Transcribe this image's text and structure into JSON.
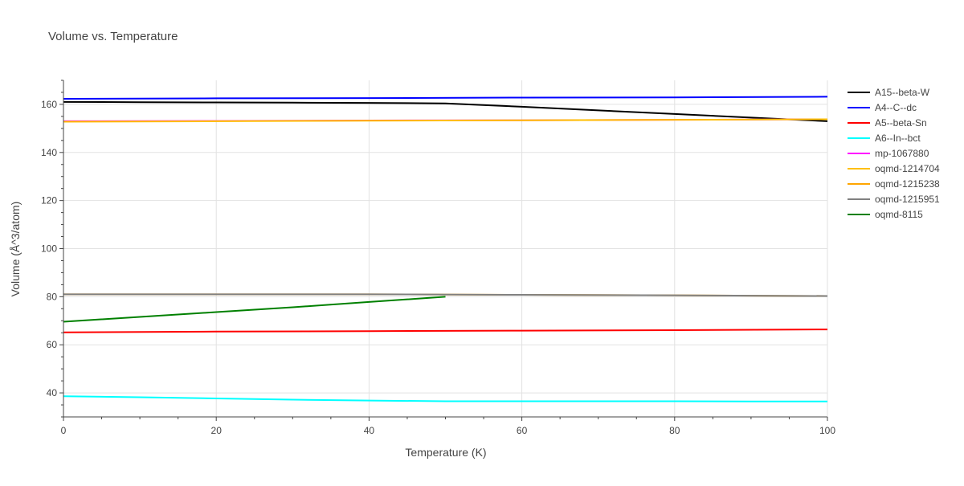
{
  "chart_data": {
    "type": "line",
    "title": "Volume vs. Temperature",
    "xlabel": "Temperature (K)",
    "ylabel": "Volume (Å^3/atom)",
    "xlim": [
      0,
      100
    ],
    "ylim": [
      30,
      170
    ],
    "xticks": [
      0,
      20,
      40,
      60,
      80,
      100
    ],
    "yticks": [
      40,
      60,
      80,
      100,
      120,
      140,
      160
    ],
    "grid": true,
    "legend_position": "right",
    "series": [
      {
        "name": "A15--beta-W",
        "color": "#000000",
        "x": [
          0,
          10,
          20,
          30,
          40,
          50,
          60,
          70,
          80,
          90,
          100
        ],
        "y": [
          161.0,
          160.9,
          160.8,
          160.7,
          160.6,
          160.4,
          159.0,
          157.5,
          156.0,
          154.5,
          153.0
        ]
      },
      {
        "name": "A4--C--dc",
        "color": "#0000ff",
        "x": [
          0,
          20,
          40,
          60,
          80,
          100
        ],
        "y": [
          162.3,
          162.5,
          162.6,
          162.8,
          162.9,
          163.2
        ]
      },
      {
        "name": "A5--beta-Sn",
        "color": "#ff0000",
        "x": [
          0,
          20,
          40,
          60,
          80,
          100
        ],
        "y": [
          65.2,
          65.5,
          65.7,
          65.9,
          66.1,
          66.4
        ]
      },
      {
        "name": "A6--In--bct",
        "color": "#00ffff",
        "x": [
          0,
          10,
          20,
          30,
          40,
          50,
          60,
          70,
          80,
          90,
          100
        ],
        "y": [
          38.6,
          38.2,
          37.7,
          37.2,
          36.8,
          36.5,
          36.5,
          36.5,
          36.5,
          36.4,
          36.4
        ]
      },
      {
        "name": "mp-1067880",
        "color": "#ff00ff",
        "x": [
          0,
          20,
          40,
          60,
          80,
          100
        ],
        "y": [
          153.0,
          153.1,
          153.3,
          153.4,
          153.6,
          153.8
        ]
      },
      {
        "name": "oqmd-1214704",
        "color": "#ffbf00",
        "x": [
          0,
          20,
          40,
          60,
          80,
          100
        ],
        "y": [
          152.8,
          153.0,
          153.2,
          153.4,
          153.6,
          153.8
        ]
      },
      {
        "name": "oqmd-1215238",
        "color": "#ffa500",
        "x": [
          0,
          20,
          40,
          60,
          80,
          100
        ],
        "y": [
          81.0,
          81.0,
          81.0,
          80.8,
          80.6,
          80.3
        ]
      },
      {
        "name": "oqmd-1215951",
        "color": "#808080",
        "x": [
          0,
          20,
          40,
          60,
          80,
          100
        ],
        "y": [
          81.0,
          81.0,
          81.0,
          80.8,
          80.6,
          80.3
        ]
      },
      {
        "name": "oqmd-8115",
        "color": "#008000",
        "x": [
          0,
          10,
          20,
          30,
          40,
          50
        ],
        "y": [
          69.6,
          71.6,
          73.6,
          75.6,
          77.8,
          80.0
        ]
      }
    ]
  }
}
